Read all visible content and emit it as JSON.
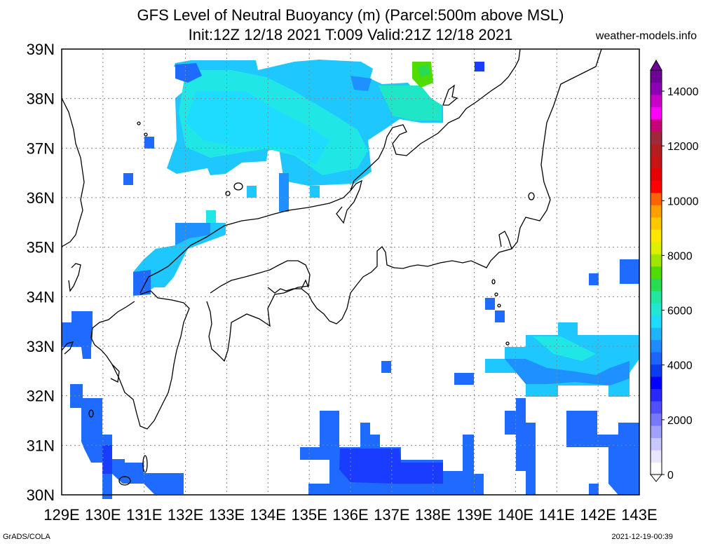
{
  "title_line1": "GFS Level of Neutral Buoyancy (m) (Parcel:500m above MSL)",
  "title_line2": "Init:12Z 12/18 2021 T:009 Valid:21Z 12/18 2021",
  "site": "weather-models.info",
  "footer_left": "GrADS/COLA",
  "footer_right": "2021-12-19-00:39",
  "map": {
    "lon_range": [
      129,
      143
    ],
    "lat_range": [
      30,
      39
    ],
    "lon_labels": [
      "129E",
      "130E",
      "131E",
      "132E",
      "133E",
      "134E",
      "135E",
      "136E",
      "137E",
      "138E",
      "139E",
      "140E",
      "141E",
      "142E",
      "143E"
    ],
    "lat_labels": [
      "30N",
      "31N",
      "32N",
      "33N",
      "34N",
      "35N",
      "36N",
      "37N",
      "38N",
      "39N"
    ],
    "grid": "dotted"
  },
  "colorbar": {
    "labels": [
      "0",
      "2000",
      "4000",
      "6000",
      "8000",
      "10000",
      "12000",
      "14000"
    ],
    "colors": [
      "#ffffff",
      "#e6e6ff",
      "#c8c8ff",
      "#a0a0ff",
      "#7878ff",
      "#5050ff",
      "#2828ff",
      "#0000ff",
      "#0a3cf0",
      "#1e64ff",
      "#1e8cff",
      "#1eb4ff",
      "#1edcff",
      "#20e6d2",
      "#20e6a0",
      "#28dc50",
      "#50dc00",
      "#a0e600",
      "#dcf000",
      "#ffe600",
      "#ffc800",
      "#ffa000",
      "#ff6400",
      "#ff0000",
      "#e60000",
      "#c81414",
      "#b41e1e",
      "#a0283c",
      "#c80078",
      "#ff00ff",
      "#c800c8",
      "#8c00b4",
      "#6e0096"
    ]
  },
  "field_colors": {
    "dark_blue": "#1a3cff",
    "blue": "#1f6bff",
    "mid_blue": "#1e90ff",
    "light_blue": "#1ec8ff",
    "cyan": "#20e6e6",
    "green": "#28dc50"
  }
}
